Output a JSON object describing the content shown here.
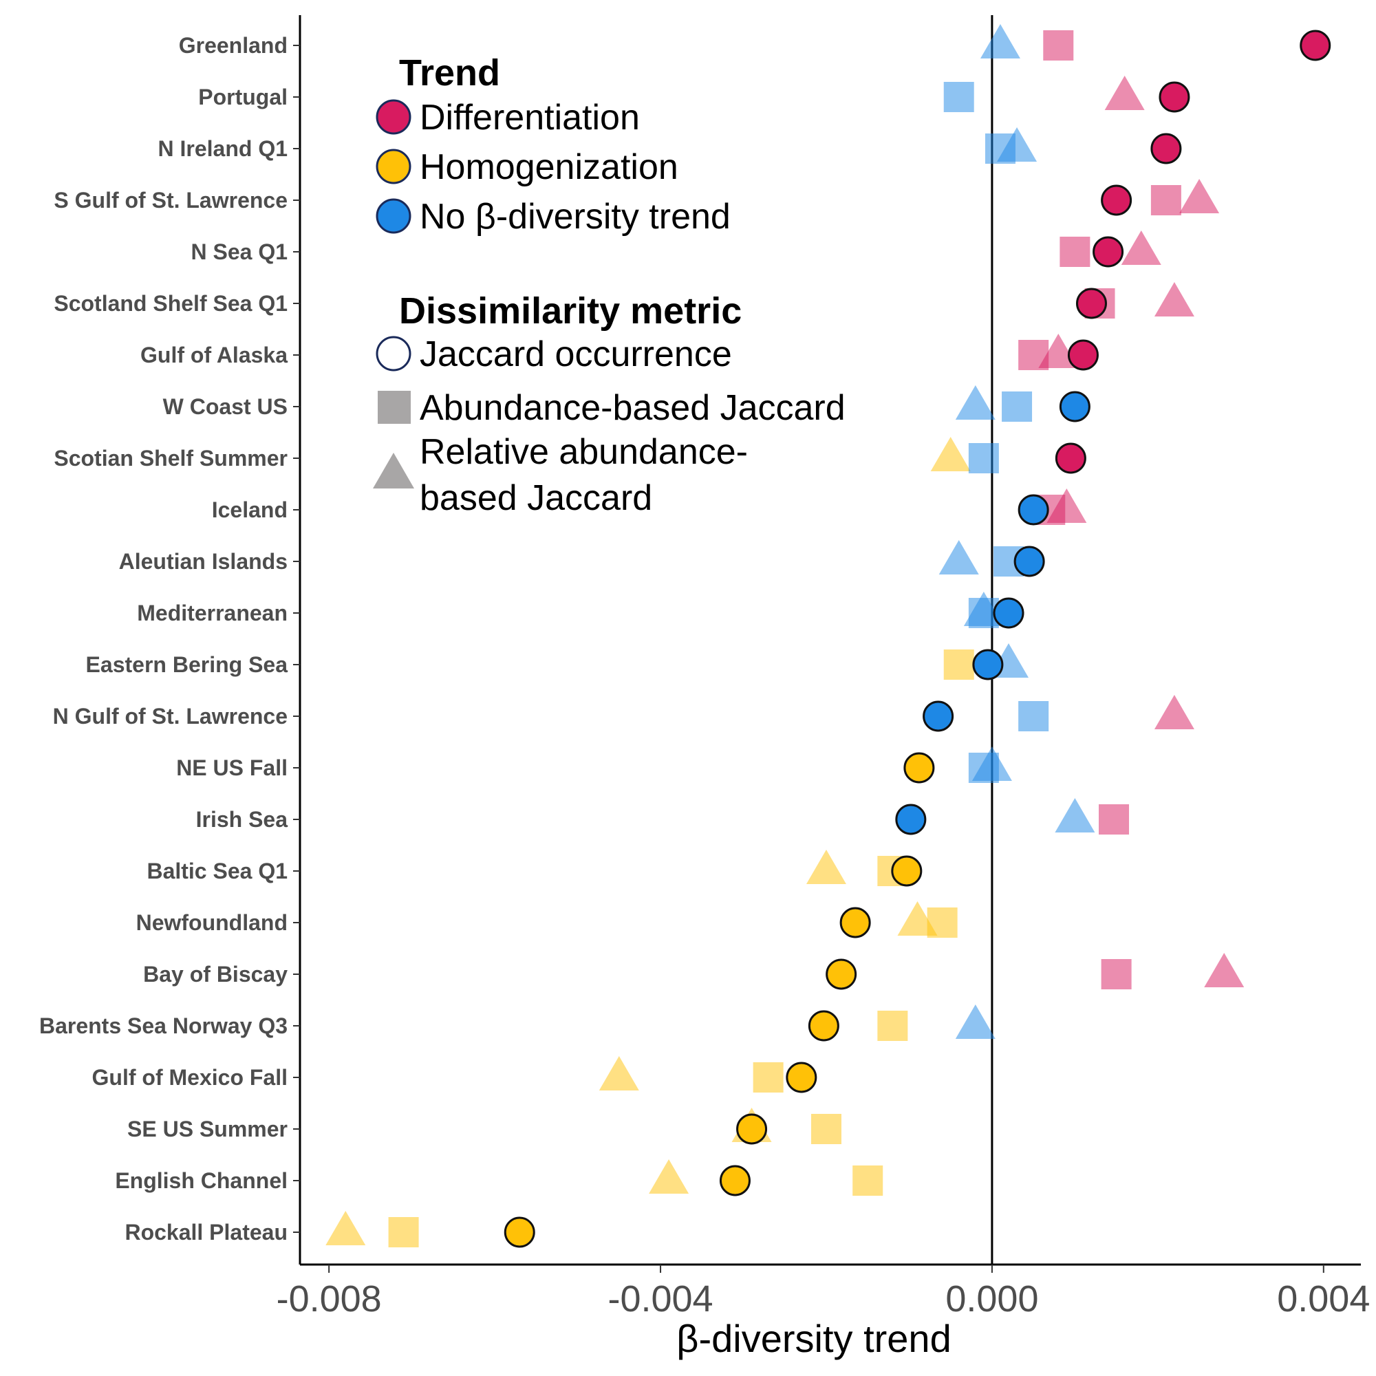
{
  "chart_data": {
    "type": "scatter",
    "xlabel": "β-diversity trend",
    "ylabel": "",
    "xlim": [
      -0.00835,
      0.00445
    ],
    "xticks": [
      -0.008,
      -0.004,
      0.0,
      0.004
    ],
    "xtick_labels": [
      "-0.008",
      "-0.004",
      "0.000",
      "0.004"
    ],
    "reference_line_x": 0,
    "grid": false,
    "legend_position": "top-left",
    "categories": [
      "Greenland",
      "Portugal",
      "N Ireland Q1",
      "S Gulf of St. Lawrence",
      "N Sea Q1",
      "Scotland Shelf Sea Q1",
      "Gulf of Alaska",
      "W Coast US",
      "Scotian Shelf Summer",
      "Iceland",
      "Aleutian Islands",
      "Mediterranean",
      "Eastern Bering Sea",
      "N Gulf of St. Lawrence",
      "NE US Fall",
      "Irish Sea",
      "Baltic Sea Q1",
      "Newfoundland",
      "Bay of Biscay",
      "Barents Sea Norway Q3",
      "Gulf of Mexico Fall",
      "SE US Summer",
      "English Channel",
      "Rockall Plateau"
    ],
    "trend_colors": {
      "Differentiation": "#d81b60",
      "Homogenization": "#ffc107",
      "No β-diversity trend": "#1e88e5"
    },
    "series": [
      {
        "name": "Jaccard occurrence",
        "shape": "circle",
        "values": [
          0.0039,
          0.0022,
          0.0021,
          0.0015,
          0.0014,
          0.0012,
          0.0011,
          0.001,
          0.00095,
          0.0005,
          0.00045,
          0.0002,
          -5e-05,
          -0.00065,
          -0.00088,
          -0.00098,
          -0.00103,
          -0.00165,
          -0.00182,
          -0.00203,
          -0.0023,
          -0.0029,
          -0.0031,
          -0.0057
        ],
        "trends": [
          "Differentiation",
          "Differentiation",
          "Differentiation",
          "Differentiation",
          "Differentiation",
          "Differentiation",
          "Differentiation",
          "No β-diversity trend",
          "Differentiation",
          "No β-diversity trend",
          "No β-diversity trend",
          "No β-diversity trend",
          "No β-diversity trend",
          "No β-diversity trend",
          "Homogenization",
          "No β-diversity trend",
          "Homogenization",
          "Homogenization",
          "Homogenization",
          "Homogenization",
          "Homogenization",
          "Homogenization",
          "Homogenization",
          "Homogenization"
        ]
      },
      {
        "name": "Abundance-based Jaccard",
        "shape": "square",
        "values": [
          0.0008,
          -0.0004,
          0.0001,
          0.0021,
          0.001,
          0.0013,
          0.0005,
          0.0003,
          -0.0001,
          0.0007,
          0.0002,
          -0.0001,
          -0.0004,
          0.0005,
          -0.0001,
          0.00147,
          -0.0012,
          -0.0006,
          0.0015,
          -0.0012,
          -0.0027,
          -0.002,
          -0.0015,
          -0.0071
        ],
        "trends": [
          "Differentiation",
          "No β-diversity trend",
          "No β-diversity trend",
          "Differentiation",
          "Differentiation",
          "Differentiation",
          "Differentiation",
          "No β-diversity trend",
          "No β-diversity trend",
          "Differentiation",
          "No β-diversity trend",
          "No β-diversity trend",
          "Homogenization",
          "No β-diversity trend",
          "No β-diversity trend",
          "Differentiation",
          "Homogenization",
          "Homogenization",
          "Differentiation",
          "Homogenization",
          "Homogenization",
          "Homogenization",
          "Homogenization",
          "Homogenization"
        ]
      },
      {
        "name": "Relative abundance-based Jaccard",
        "shape": "triangle",
        "values": [
          0.0001,
          0.0016,
          0.0003,
          0.0025,
          0.0018,
          0.0022,
          0.0008,
          -0.0002,
          -0.0005,
          0.0009,
          -0.0004,
          -0.0001,
          0.0002,
          0.0022,
          0.0,
          0.001,
          -0.002,
          -0.0009,
          0.0028,
          -0.0002,
          -0.0045,
          -0.0029,
          -0.0039,
          -0.0078
        ],
        "trends": [
          "No β-diversity trend",
          "Differentiation",
          "No β-diversity trend",
          "Differentiation",
          "Differentiation",
          "Differentiation",
          "Differentiation",
          "No β-diversity trend",
          "Homogenization",
          "Differentiation",
          "No β-diversity trend",
          "No β-diversity trend",
          "No β-diversity trend",
          "Differentiation",
          "No β-diversity trend",
          "No β-diversity trend",
          "Homogenization",
          "Homogenization",
          "Differentiation",
          "No β-diversity trend",
          "Homogenization",
          "Homogenization",
          "Homogenization",
          "Homogenization"
        ]
      }
    ],
    "legend": {
      "trend_title": "Trend",
      "trend_items": [
        "Differentiation",
        "Homogenization",
        "No β-diversity trend"
      ],
      "metric_title": "Dissimilarity metric",
      "metric_items": [
        {
          "shape": "circle",
          "lines": [
            "Jaccard occurrence"
          ]
        },
        {
          "shape": "square",
          "lines": [
            "Abundance-based Jaccard"
          ]
        },
        {
          "shape": "triangle",
          "lines": [
            "Relative abundance-",
            "based Jaccard"
          ]
        }
      ]
    }
  }
}
